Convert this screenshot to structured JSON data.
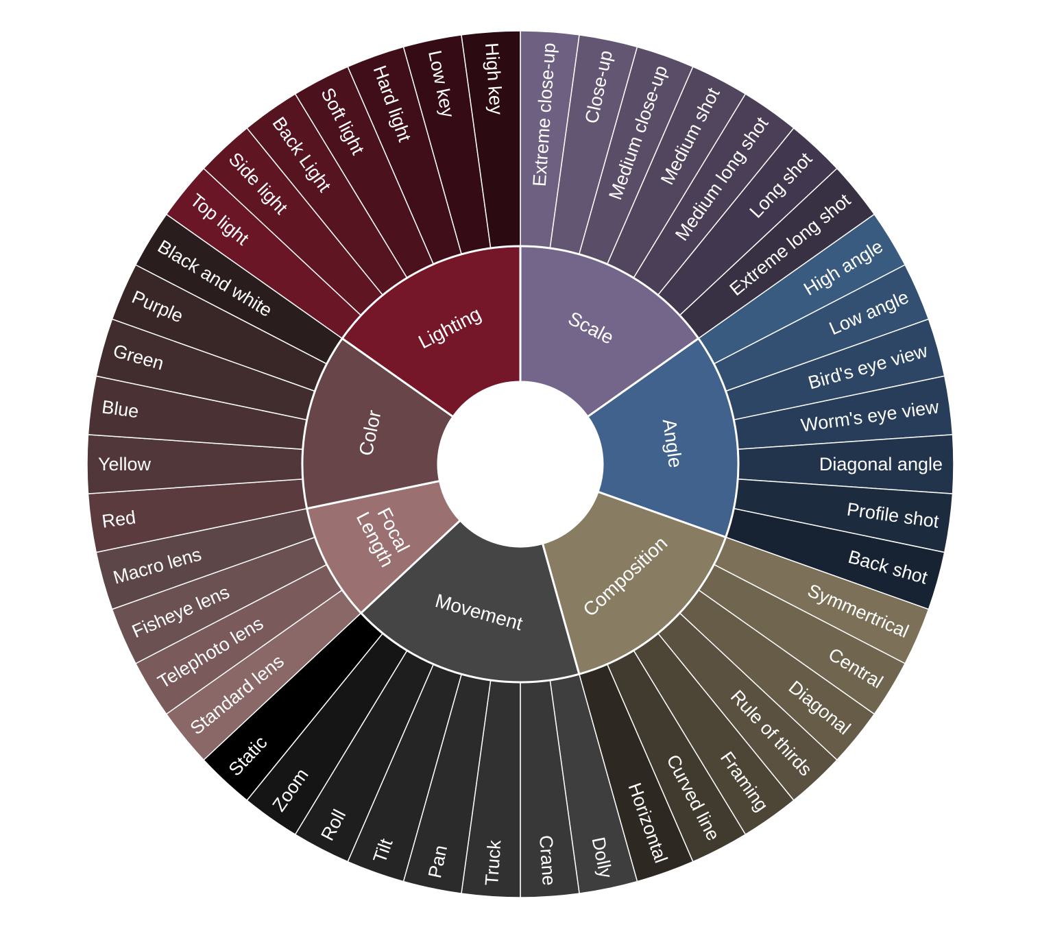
{
  "chart_data": {
    "type": "sunburst",
    "title": "",
    "categories": [
      {
        "name": "Scale",
        "color": "#74668a",
        "children": [
          {
            "name": "Extreme close-up",
            "color": "#6e6080"
          },
          {
            "name": "Close-up",
            "color": "#635672"
          },
          {
            "name": "Medium close-up",
            "color": "#5a4d68"
          },
          {
            "name": "Medium shot",
            "color": "#52465f"
          },
          {
            "name": "Medium long shot",
            "color": "#4a3f57"
          },
          {
            "name": "Long shot",
            "color": "#413850"
          },
          {
            "name": "Extreme long shot",
            "color": "#383043"
          }
        ]
      },
      {
        "name": "Angle",
        "color": "#40628c",
        "children": [
          {
            "name": "High angle",
            "color": "#3a5b80"
          },
          {
            "name": "Low angle",
            "color": "#334f71"
          },
          {
            "name": "Bird's eye view",
            "color": "#2e4666"
          },
          {
            "name": "Worm's eye view",
            "color": "#283d59"
          },
          {
            "name": "Diagonal angle",
            "color": "#22344c"
          },
          {
            "name": "Profile shot",
            "color": "#1d2b3f"
          },
          {
            "name": "Back shot",
            "color": "#172333"
          }
        ]
      },
      {
        "name": "Composition",
        "color": "#887c63",
        "children": [
          {
            "name": "Symmertrical",
            "color": "#7c7158"
          },
          {
            "name": "Central",
            "color": "#706650"
          },
          {
            "name": "Diagonal",
            "color": "#665c48"
          },
          {
            "name": "Rule of thirds",
            "color": "#5a5140"
          },
          {
            "name": "Framing",
            "color": "#4d4536"
          },
          {
            "name": "Curved line",
            "color": "#413a2e"
          },
          {
            "name": "Horizontal",
            "color": "#2d2822"
          }
        ]
      },
      {
        "name": "Movement",
        "color": "#454545",
        "children": [
          {
            "name": "Dolly",
            "color": "#3e3e3e"
          },
          {
            "name": "Crane",
            "color": "#383838"
          },
          {
            "name": "Truck",
            "color": "#313131"
          },
          {
            "name": "Pan",
            "color": "#2b2b2b"
          },
          {
            "name": "Tilt",
            "color": "#252525"
          },
          {
            "name": "Roll",
            "color": "#1e1e1e"
          },
          {
            "name": "Zoom",
            "color": "#151515"
          },
          {
            "name": "Static",
            "color": "#000000"
          }
        ]
      },
      {
        "name": "Focal Length",
        "color": "#9a7070",
        "children": [
          {
            "name": "Standard lens",
            "color": "#8b6868"
          },
          {
            "name": "Telephoto lens",
            "color": "#7a5a5b"
          },
          {
            "name": "Fisheye lens",
            "color": "#6b5152"
          },
          {
            "name": "Macro lens",
            "color": "#5d4647"
          }
        ]
      },
      {
        "name": "Color",
        "color": "#684548",
        "children": [
          {
            "name": "Red",
            "color": "#5b3b3e"
          },
          {
            "name": "Yellow",
            "color": "#52373a"
          },
          {
            "name": "Blue",
            "color": "#4a3134"
          },
          {
            "name": "Green",
            "color": "#412c2e"
          },
          {
            "name": "Purple",
            "color": "#392627"
          },
          {
            "name": "Black and white",
            "color": "#2a1d1e"
          }
        ]
      },
      {
        "name": "Lighting",
        "color": "#751629",
        "children": [
          {
            "name": "Top light",
            "color": "#6a1626"
          },
          {
            "name": "Side light",
            "color": "#601523"
          },
          {
            "name": "Back Light",
            "color": "#561320"
          },
          {
            "name": "Soft light",
            "color": "#4b111d"
          },
          {
            "name": "Hard light",
            "color": "#400e19"
          },
          {
            "name": "Low key",
            "color": "#350c15"
          },
          {
            "name": "High key",
            "color": "#2b0a11"
          }
        ]
      }
    ]
  }
}
